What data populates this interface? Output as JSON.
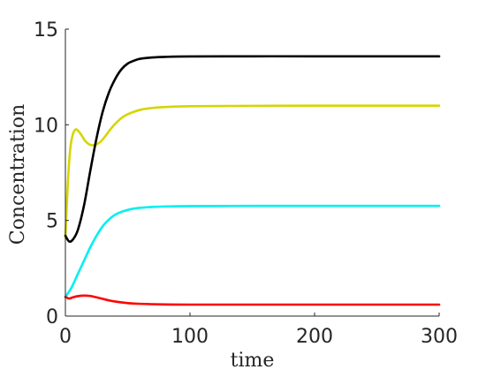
{
  "chart_data": {
    "type": "line",
    "title": "",
    "xlabel": "time",
    "ylabel": "Concentration",
    "xlim": [
      0,
      300
    ],
    "ylim": [
      0,
      15
    ],
    "xticks": [
      0,
      100,
      200,
      300
    ],
    "yticks": [
      0,
      5,
      10,
      15
    ],
    "xtick_labels": [
      "0",
      "100",
      "200",
      "300"
    ],
    "ytick_labels": [
      "0",
      "5",
      "10",
      "15"
    ],
    "grid": false,
    "legend": "none",
    "series": [
      {
        "color": "#000000",
        "x": [
          0,
          3,
          6,
          10,
          15,
          20,
          25,
          30,
          35,
          40,
          45,
          50,
          55,
          60,
          70,
          80,
          100,
          150,
          200,
          300
        ],
        "y": [
          4.2,
          3.9,
          4.0,
          4.5,
          5.8,
          7.6,
          9.3,
          10.7,
          11.7,
          12.4,
          12.9,
          13.2,
          13.35,
          13.45,
          13.52,
          13.55,
          13.57,
          13.58,
          13.58,
          13.58
        ]
      },
      {
        "color": "#d4d600",
        "x": [
          0,
          2,
          4,
          6,
          8,
          10,
          13,
          16,
          20,
          24,
          28,
          32,
          36,
          40,
          45,
          50,
          60,
          70,
          80,
          100,
          150,
          200,
          300
        ],
        "y": [
          4.1,
          7.0,
          8.8,
          9.5,
          9.75,
          9.7,
          9.45,
          9.15,
          8.95,
          8.95,
          9.1,
          9.4,
          9.75,
          10.05,
          10.35,
          10.55,
          10.78,
          10.88,
          10.93,
          10.97,
          10.99,
          11.0,
          11.0
        ]
      },
      {
        "color": "#00f0f0",
        "x": [
          0,
          5,
          10,
          15,
          20,
          25,
          30,
          35,
          40,
          45,
          50,
          55,
          60,
          70,
          80,
          100,
          150,
          200,
          300
        ],
        "y": [
          1.0,
          1.5,
          2.2,
          2.9,
          3.6,
          4.2,
          4.7,
          5.05,
          5.3,
          5.45,
          5.55,
          5.62,
          5.66,
          5.71,
          5.73,
          5.75,
          5.76,
          5.76,
          5.76
        ]
      },
      {
        "color": "#ff0000",
        "x": [
          0,
          3,
          6,
          10,
          15,
          20,
          25,
          30,
          35,
          40,
          50,
          60,
          80,
          100,
          150,
          200,
          300
        ],
        "y": [
          1.0,
          0.92,
          0.98,
          1.04,
          1.07,
          1.05,
          0.98,
          0.9,
          0.82,
          0.76,
          0.68,
          0.64,
          0.61,
          0.6,
          0.6,
          0.6,
          0.6
        ]
      }
    ]
  }
}
